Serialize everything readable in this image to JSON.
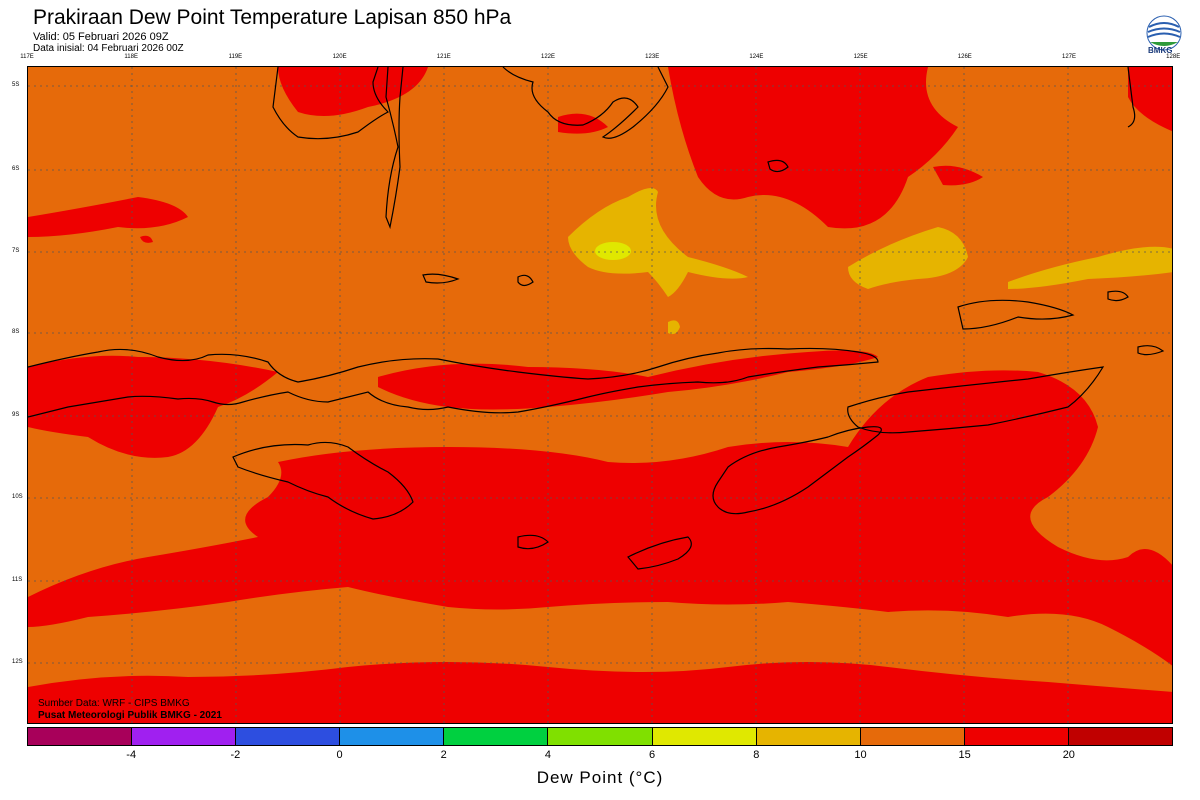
{
  "header": {
    "title": "Prakiraan Dew Point Temperature Lapisan 850 hPa",
    "valid": "Valid: 05 Februari 2026 09Z",
    "init": "Data inisial: 04 Februari 2026 00Z"
  },
  "logo": {
    "text": "BMKG",
    "icon": "bmkg-logo-icon"
  },
  "map": {
    "lon_labels": [
      "117E",
      "118E",
      "119E",
      "120E",
      "121E",
      "122E",
      "123E",
      "124E",
      "125E",
      "126E",
      "127E",
      "128E"
    ],
    "lat_labels": [
      "5S",
      "6S",
      "7S",
      "8S",
      "9S",
      "10S",
      "11S",
      "12S"
    ]
  },
  "footer": {
    "source": "Sumber Data: WRF - CIPS BMKG",
    "center": "Pusat Meteorologi Publik BMKG - 2021"
  },
  "colorbar": {
    "title": "Dew Point (°C)",
    "ticks": [
      "-4",
      "-2",
      "0",
      "2",
      "4",
      "6",
      "8",
      "10",
      "15",
      "20"
    ],
    "colors": [
      "#a8005a",
      "#a020f0",
      "#2d4ee0",
      "#1e90e8",
      "#00d040",
      "#80e000",
      "#e0e800",
      "#e6b400",
      "#e66a0a",
      "#ee0000",
      "#c00000"
    ]
  }
}
